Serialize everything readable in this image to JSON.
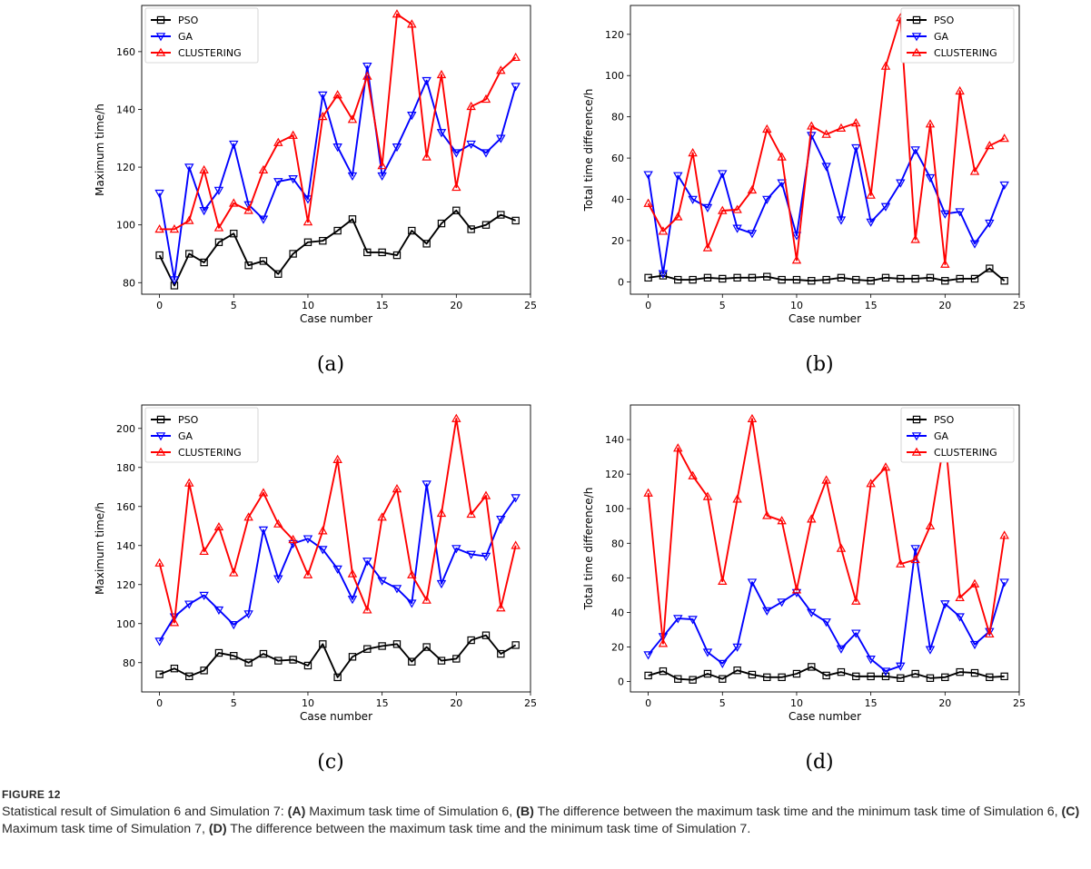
{
  "chart_data": [
    {
      "type": "line",
      "panel_label": "(a)",
      "xlabel": "Case number",
      "ylabel": "Maximum time/h",
      "xlim": [
        -1.2,
        25
      ],
      "ylim": [
        76,
        176
      ],
      "xticks": [
        0,
        5,
        10,
        15,
        20,
        25
      ],
      "yticks": [
        80,
        100,
        120,
        140,
        160
      ],
      "legend_position": "top-left",
      "x": [
        0,
        1,
        2,
        3,
        4,
        5,
        6,
        7,
        8,
        9,
        10,
        11,
        12,
        13,
        14,
        15,
        16,
        17,
        18,
        19,
        20,
        21,
        22,
        23,
        24
      ],
      "series": [
        {
          "name": "PSO",
          "color": "#000000",
          "marker": "square",
          "values": [
            89.5,
            79,
            90,
            87,
            94,
            97,
            86,
            87.5,
            83,
            90,
            94,
            94.5,
            98,
            102,
            90.5,
            90.5,
            89.5,
            98,
            93.5,
            100.5,
            105,
            98.5,
            100,
            103.5,
            101.5
          ]
        },
        {
          "name": "GA",
          "color": "#0000ff",
          "marker": "triangle-down",
          "values": [
            111,
            81,
            120,
            105,
            112,
            128,
            107,
            102,
            115,
            116,
            109,
            145,
            127,
            117,
            155,
            117,
            127,
            138,
            150,
            132,
            125,
            128,
            125,
            130,
            148
          ]
        },
        {
          "name": "CLUSTERING",
          "color": "#ff0000",
          "marker": "triangle-up",
          "values": [
            98.5,
            98.5,
            101.5,
            119,
            99,
            107.5,
            105,
            119,
            128.5,
            131,
            101,
            137.5,
            145,
            136.5,
            151.5,
            120.5,
            173,
            169.5,
            123.5,
            152,
            113,
            141,
            143.5,
            153.5,
            158
          ]
        }
      ]
    },
    {
      "type": "line",
      "panel_label": "(b)",
      "xlabel": "Case number",
      "ylabel": "Total time difference/h",
      "xlim": [
        -1.2,
        25
      ],
      "ylim": [
        -6,
        134
      ],
      "xticks": [
        0,
        5,
        10,
        15,
        20,
        25
      ],
      "yticks": [
        0,
        20,
        40,
        60,
        80,
        100,
        120
      ],
      "legend_position": "top-right",
      "x": [
        0,
        1,
        2,
        3,
        4,
        5,
        6,
        7,
        8,
        9,
        10,
        11,
        12,
        13,
        14,
        15,
        16,
        17,
        18,
        19,
        20,
        21,
        22,
        23,
        24
      ],
      "series": [
        {
          "name": "PSO",
          "color": "#000000",
          "marker": "square",
          "values": [
            2,
            3,
            1,
            1,
            2,
            1.5,
            2,
            2,
            2.5,
            1,
            1,
            0.5,
            1,
            2,
            1,
            0.5,
            2,
            1.5,
            1.5,
            2,
            0.5,
            1.5,
            1.5,
            6.5,
            0.5
          ]
        },
        {
          "name": "GA",
          "color": "#0000ff",
          "marker": "triangle-down",
          "values": [
            52,
            4,
            51.5,
            40,
            36,
            52.5,
            26,
            23.5,
            40,
            48,
            22.5,
            71,
            56,
            30,
            65,
            29,
            36.5,
            48,
            64,
            50.5,
            33,
            34,
            18.5,
            28.5,
            47
          ]
        },
        {
          "name": "CLUSTERING",
          "color": "#ff0000",
          "marker": "triangle-up",
          "values": [
            38,
            24.5,
            31.5,
            62.5,
            16.5,
            34.5,
            35,
            44.5,
            74,
            60.5,
            10.5,
            75.5,
            71.5,
            74.5,
            77,
            42,
            104.5,
            128,
            20.5,
            76.5,
            8.5,
            92.5,
            53.5,
            66,
            69.5
          ]
        }
      ]
    },
    {
      "type": "line",
      "panel_label": "(c)",
      "xlabel": "Case number",
      "ylabel": "Maximum time/h",
      "xlim": [
        -1.2,
        25
      ],
      "ylim": [
        65,
        212
      ],
      "xticks": [
        0,
        5,
        10,
        15,
        20,
        25
      ],
      "yticks": [
        80,
        100,
        120,
        140,
        160,
        180,
        200
      ],
      "legend_position": "top-left",
      "x": [
        0,
        1,
        2,
        3,
        4,
        5,
        6,
        7,
        8,
        9,
        10,
        11,
        12,
        13,
        14,
        15,
        16,
        17,
        18,
        19,
        20,
        21,
        22,
        23,
        24
      ],
      "series": [
        {
          "name": "PSO",
          "color": "#000000",
          "marker": "square",
          "values": [
            74,
            77,
            73,
            76,
            85,
            83.5,
            80,
            84.5,
            81,
            81.5,
            78.5,
            89.5,
            72.5,
            83,
            87,
            88.5,
            89.5,
            80.5,
            88,
            81,
            82,
            91.5,
            94,
            84.5,
            89
          ]
        },
        {
          "name": "GA",
          "color": "#0000ff",
          "marker": "triangle-down",
          "values": [
            91,
            103.5,
            110,
            114.5,
            107,
            99.5,
            105,
            148,
            123,
            141,
            143.5,
            138,
            128,
            112.5,
            132,
            122,
            118,
            110.5,
            171.5,
            120.5,
            138.5,
            135.5,
            134.5,
            153.5,
            164.5
          ]
        },
        {
          "name": "CLUSTERING",
          "color": "#ff0000",
          "marker": "triangle-up",
          "values": [
            131,
            100.5,
            172,
            137,
            149.5,
            126,
            154.5,
            167,
            151,
            143,
            125,
            147.5,
            184,
            125.5,
            107,
            154.5,
            169,
            125,
            112,
            156.5,
            205,
            156,
            165.5,
            108,
            140
          ]
        }
      ]
    },
    {
      "type": "line",
      "panel_label": "(d)",
      "xlabel": "Case number",
      "ylabel": "Total time difference/h",
      "xlim": [
        -1.2,
        25
      ],
      "ylim": [
        -6,
        160
      ],
      "xticks": [
        0,
        5,
        10,
        15,
        20,
        25
      ],
      "yticks": [
        0,
        20,
        40,
        60,
        80,
        100,
        120,
        140
      ],
      "legend_position": "top-right",
      "x": [
        0,
        1,
        2,
        3,
        4,
        5,
        6,
        7,
        8,
        9,
        10,
        11,
        12,
        13,
        14,
        15,
        16,
        17,
        18,
        19,
        20,
        21,
        22,
        23,
        24
      ],
      "series": [
        {
          "name": "PSO",
          "color": "#000000",
          "marker": "square",
          "values": [
            3.5,
            6,
            1.5,
            1,
            4.5,
            1.5,
            6.5,
            4,
            2.5,
            2.5,
            4.5,
            8.5,
            3.5,
            5.5,
            3,
            3,
            3,
            2,
            4.5,
            2,
            2.5,
            5.5,
            5,
            2.5,
            3
          ]
        },
        {
          "name": "GA",
          "color": "#0000ff",
          "marker": "triangle-down",
          "values": [
            15.5,
            26,
            36.5,
            36,
            17,
            10.5,
            20,
            57.5,
            41,
            46,
            51.5,
            40,
            34.5,
            19,
            28,
            13,
            6,
            9,
            77,
            18.5,
            45,
            37.5,
            21.5,
            29,
            57.5
          ]
        },
        {
          "name": "CLUSTERING",
          "color": "#ff0000",
          "marker": "triangle-up",
          "values": [
            109,
            22,
            135,
            119,
            107,
            58,
            105.5,
            152,
            96,
            93,
            53,
            94,
            116.5,
            77,
            46.5,
            114.5,
            124,
            68,
            70.5,
            90,
            142,
            48.5,
            56.5,
            27.5,
            84.5
          ]
        }
      ]
    }
  ],
  "caption": {
    "label": "FIGURE 12",
    "intro": "Statistical result of Simulation 6 and Simulation 7: ",
    "parts": [
      {
        "tag": "(A)",
        "text": " Maximum task time of Simulation 6, "
      },
      {
        "tag": "(B)",
        "text": " The difference between the maximum task time and the minimum task time of Simulation 6, "
      },
      {
        "tag": "(C)",
        "text": " Maximum task time of Simulation 7, "
      },
      {
        "tag": "(D)",
        "text": " The difference between the maximum task time and the minimum task time of Simulation 7."
      }
    ]
  }
}
